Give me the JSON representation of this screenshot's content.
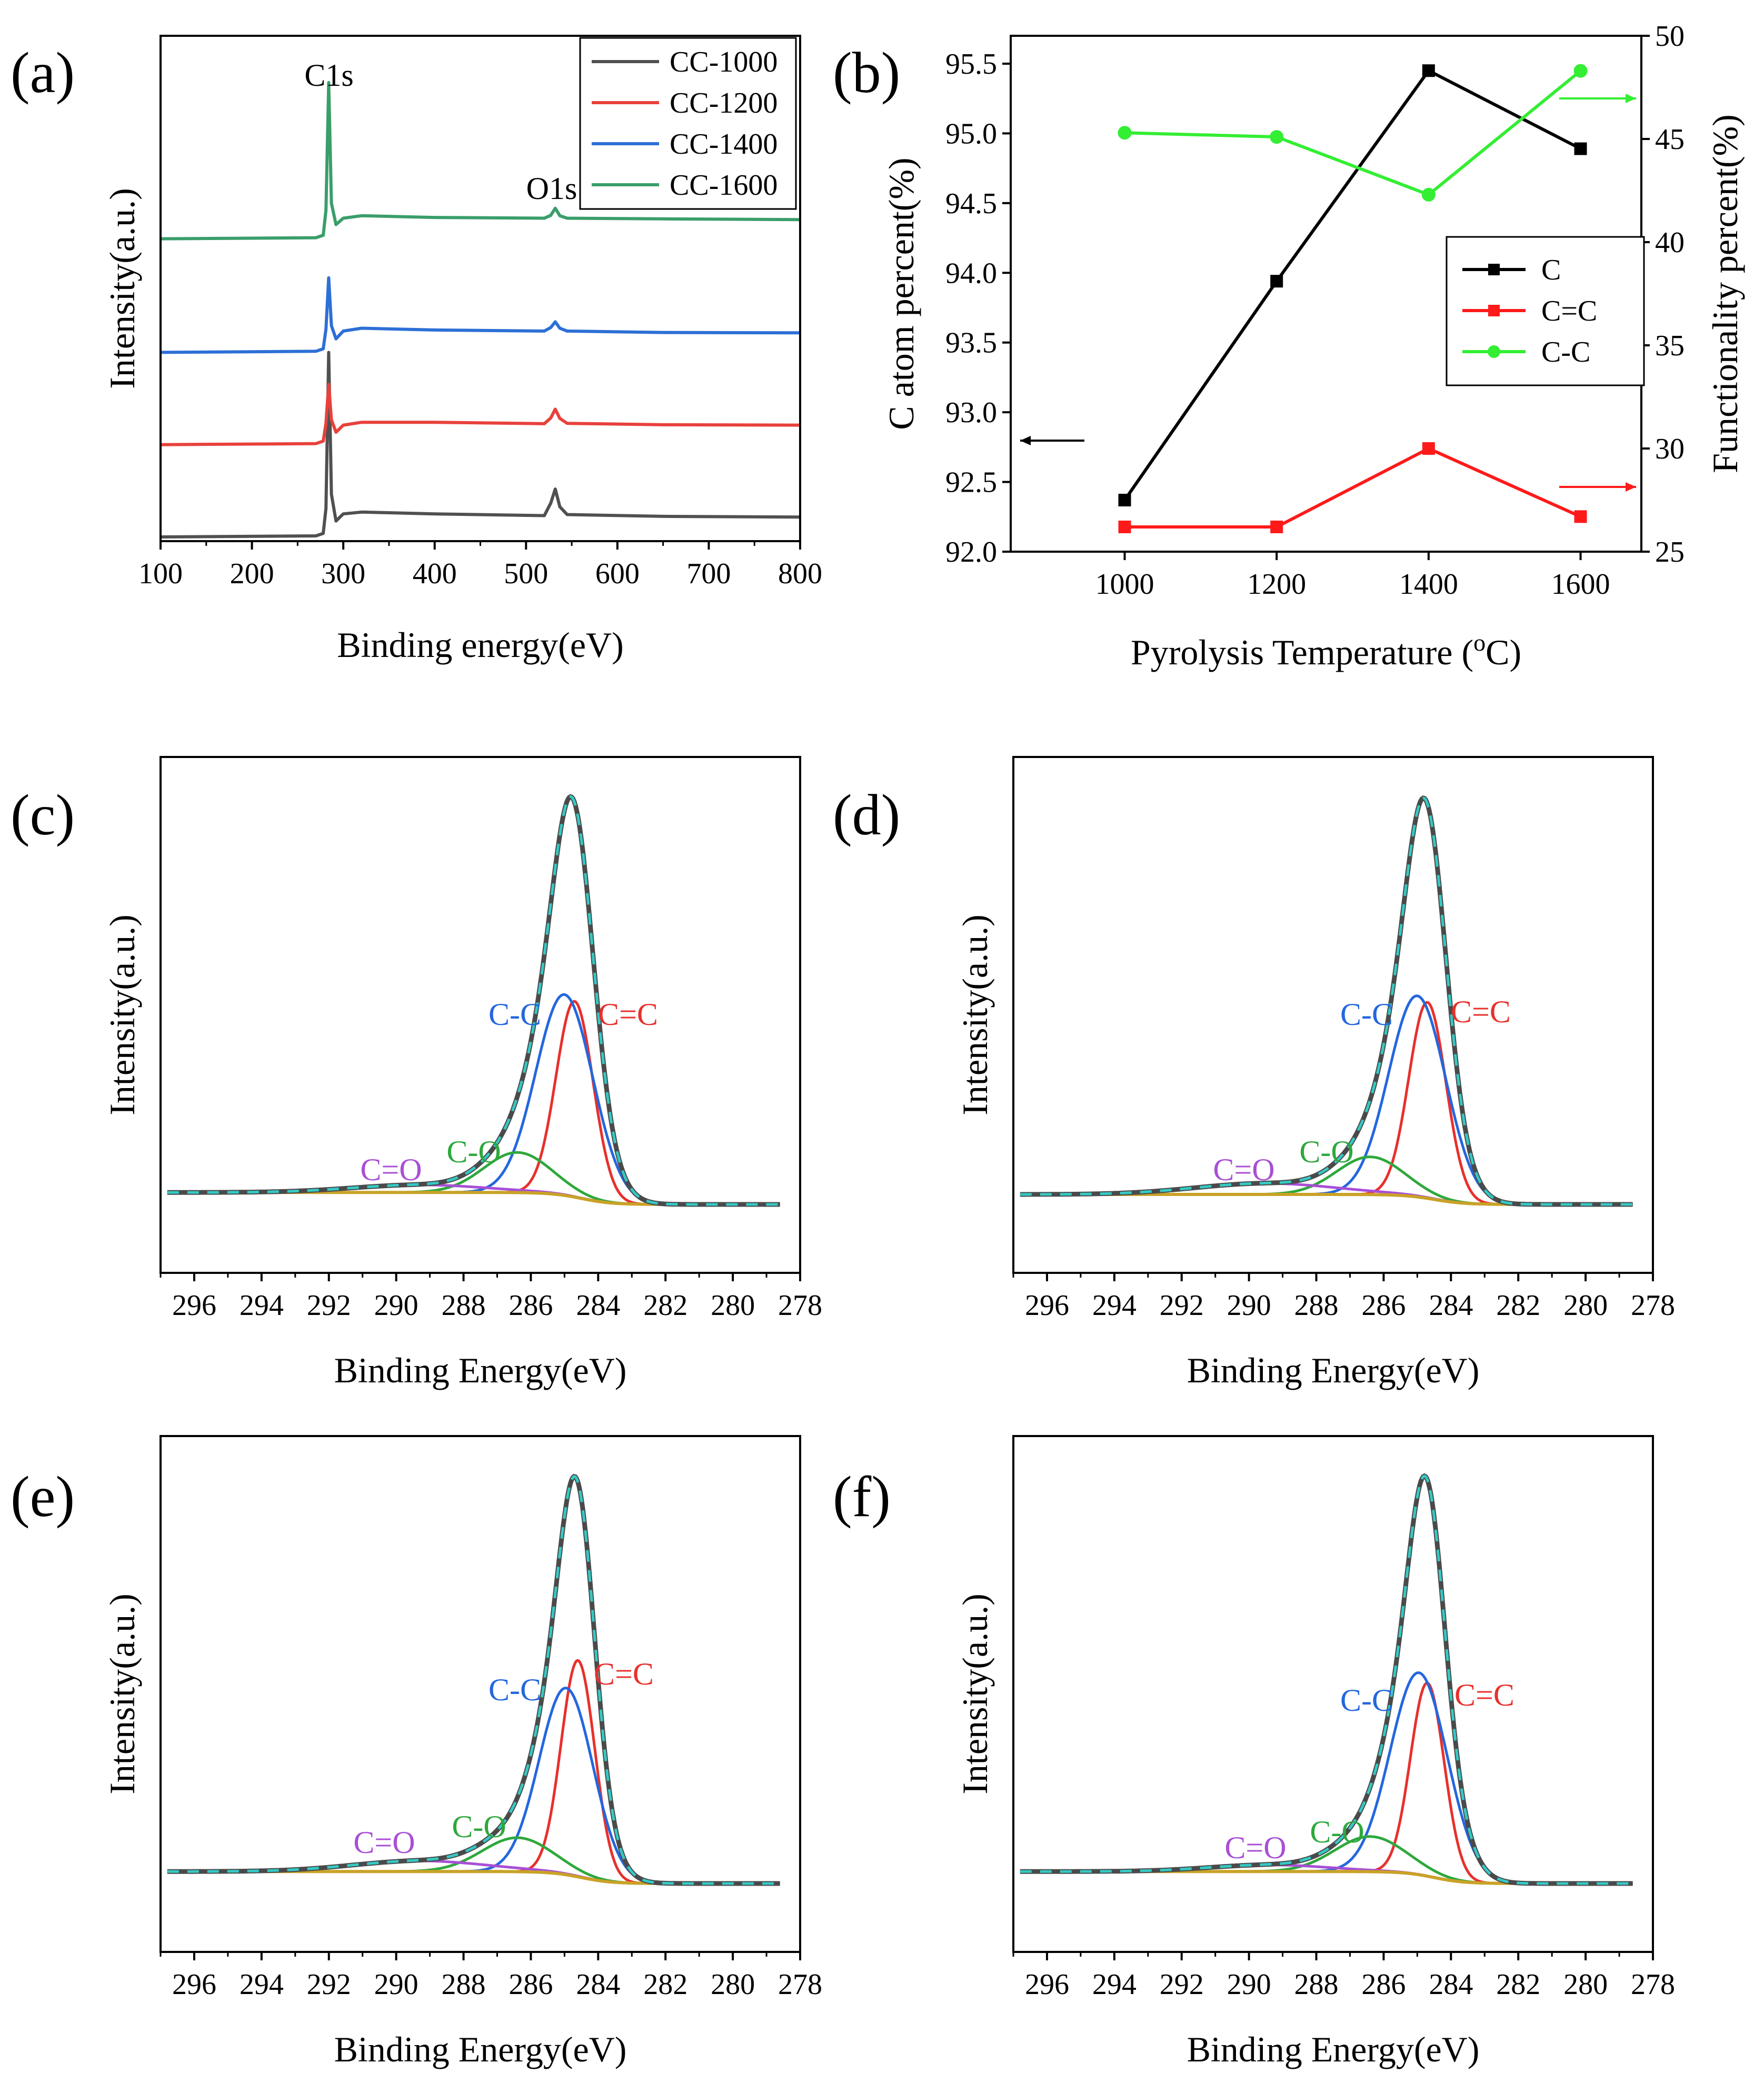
{
  "figure": {
    "panels": {
      "a": "(a)",
      "b": "(b)",
      "c": "(c)",
      "d": "(d)",
      "e": "(e)",
      "f": "(f)"
    }
  },
  "chart_data": [
    {
      "id": "a",
      "type": "line",
      "title": "",
      "xlabel": "Binding energy(eV)",
      "ylabel": "Intensity(a.u.)",
      "xlim": [
        100,
        800
      ],
      "xticks": [
        100,
        200,
        300,
        400,
        500,
        600,
        700,
        800
      ],
      "yticks": [],
      "legend_position": "top-right",
      "annotations": [
        {
          "text": "C1s",
          "x": 284
        },
        {
          "text": "O1s",
          "x": 532
        }
      ],
      "series": [
        {
          "name": "CC-1000",
          "color": "#505050",
          "offset": 0,
          "x": [
            100,
            270,
            278,
            281,
            284,
            287,
            292,
            300,
            320,
            400,
            520,
            527,
            532,
            537,
            545,
            650,
            800
          ],
          "y": [
            0,
            0.3,
            1.0,
            8.0,
            52.0,
            12.0,
            4.5,
            6.5,
            7.0,
            6.5,
            6.0,
            9.5,
            13.5,
            8.5,
            6.3,
            5.8,
            5.6
          ]
        },
        {
          "name": "CC-1200",
          "color": "#e8413c",
          "offset": 26,
          "x": [
            100,
            270,
            278,
            281,
            284,
            287,
            292,
            300,
            320,
            400,
            520,
            527,
            532,
            537,
            545,
            650,
            800
          ],
          "y": [
            0,
            0.3,
            1.0,
            6.0,
            17.0,
            7.0,
            3.5,
            5.5,
            6.3,
            6.3,
            5.9,
            7.5,
            10.0,
            7.4,
            6.0,
            5.6,
            5.5
          ]
        },
        {
          "name": "CC-1400",
          "color": "#2d6fd6",
          "offset": 52,
          "x": [
            100,
            270,
            278,
            281,
            284,
            287,
            292,
            300,
            320,
            400,
            520,
            527,
            532,
            537,
            545,
            650,
            800
          ],
          "y": [
            0,
            0.3,
            1.0,
            6.5,
            21.0,
            7.5,
            3.8,
            6.0,
            6.8,
            6.3,
            6.0,
            7.0,
            8.6,
            6.8,
            6.0,
            5.6,
            5.5
          ]
        },
        {
          "name": "CC-1600",
          "color": "#3a9e6a",
          "offset": 84,
          "x": [
            100,
            270,
            278,
            281,
            284,
            287,
            292,
            300,
            320,
            400,
            520,
            527,
            532,
            537,
            545,
            650,
            800
          ],
          "y": [
            0,
            0.3,
            1.0,
            8.0,
            44.0,
            10.0,
            4.0,
            5.8,
            6.5,
            6.0,
            5.8,
            6.6,
            8.6,
            6.5,
            5.8,
            5.6,
            5.4
          ]
        }
      ]
    },
    {
      "id": "b",
      "type": "line",
      "title": "",
      "xlabel": "Pyrolysis Temperature (",
      "xlabel_sup": "o",
      "xlabel_end": "C)",
      "ylabel": "C atom percent(%)",
      "ylabel_right": "Functionality percent(%)",
      "xlim": [
        850,
        1680
      ],
      "xticks": [
        1000,
        1200,
        1400,
        1600
      ],
      "ylim": [
        92.0,
        95.7
      ],
      "yticks": [
        "92.0",
        "92.5",
        "93.0",
        "93.5",
        "94.0",
        "94.5",
        "95.0",
        "95.5"
      ],
      "ylim_right": [
        25,
        50
      ],
      "yticks_right": [
        25,
        30,
        35,
        40,
        45,
        50
      ],
      "legend_position": "center-right",
      "x": [
        1000,
        1200,
        1400,
        1600
      ],
      "series": [
        {
          "name": "C",
          "axis": "left",
          "color": "#000000",
          "marker": "square",
          "values": [
            92.37,
            93.94,
            95.45,
            94.89
          ]
        },
        {
          "name": "C=C",
          "axis": "right",
          "color": "#ff1a1a",
          "marker": "square",
          "values": [
            26.2,
            26.2,
            30.0,
            26.7
          ]
        },
        {
          "name": "C-C",
          "axis": "right",
          "color": "#33ee33",
          "marker": "circle",
          "values": [
            45.3,
            45.1,
            42.3,
            48.3
          ]
        }
      ]
    },
    {
      "id": "c",
      "type": "line",
      "title": "",
      "xlabel": "Binding Energy(eV)",
      "ylabel": "Intensity(a.u.)",
      "xlim": [
        297,
        278
      ],
      "xticks": [
        296,
        294,
        292,
        290,
        288,
        286,
        284,
        282,
        280,
        278
      ],
      "components": [
        {
          "name": "C=C",
          "center": 284.7,
          "height": 39,
          "width": 0.55
        },
        {
          "name": "C-C",
          "center": 285.0,
          "height": 40,
          "width": 0.85
        },
        {
          "name": "C-O",
          "center": 286.4,
          "height": 8,
          "width": 1.0
        },
        {
          "name": "C=O",
          "center": 289.3,
          "height": 1.5,
          "width": 2.0
        }
      ],
      "envelope_peak": 100,
      "baseline": {
        "high_be": 3,
        "low_be": 0,
        "step_center": 284.5
      }
    },
    {
      "id": "d",
      "type": "line",
      "title": "",
      "xlabel": "Binding Energy(eV)",
      "ylabel": "Intensity(a.u.)",
      "xlim": [
        297,
        278
      ],
      "xticks": [
        296,
        294,
        292,
        290,
        288,
        286,
        284,
        282,
        280,
        278
      ],
      "components": [
        {
          "name": "C=C",
          "center": 284.7,
          "height": 39,
          "width": 0.55
        },
        {
          "name": "C-C",
          "center": 285.0,
          "height": 40,
          "width": 0.85
        },
        {
          "name": "C-O",
          "center": 286.4,
          "height": 7.5,
          "width": 1.0
        },
        {
          "name": "C=O",
          "center": 289.5,
          "height": 2.2,
          "width": 2.1
        }
      ],
      "envelope_peak": 100,
      "baseline": {
        "high_be": 2.5,
        "low_be": 0,
        "step_center": 284.5
      }
    },
    {
      "id": "e",
      "type": "line",
      "title": "",
      "xlabel": "Binding Energy(eV)",
      "ylabel": "Intensity(a.u.)",
      "xlim": [
        297,
        278
      ],
      "xticks": [
        296,
        294,
        292,
        290,
        288,
        286,
        284,
        282,
        280,
        278
      ],
      "components": [
        {
          "name": "C=C",
          "center": 284.6,
          "height": 51,
          "width": 0.5
        },
        {
          "name": "C-C",
          "center": 284.95,
          "height": 44,
          "width": 0.8
        },
        {
          "name": "C-O",
          "center": 286.4,
          "height": 8,
          "width": 1.05
        },
        {
          "name": "C=O",
          "center": 289.3,
          "height": 2.5,
          "width": 2.0
        }
      ],
      "envelope_peak": 100,
      "baseline": {
        "high_be": 3,
        "low_be": 0,
        "step_center": 284.5
      }
    },
    {
      "id": "f",
      "type": "line",
      "title": "",
      "xlabel": "Binding Energy(eV)",
      "ylabel": "Intensity(a.u.)",
      "xlim": [
        297,
        278
      ],
      "xticks": [
        296,
        294,
        292,
        290,
        288,
        286,
        284,
        282,
        280,
        278
      ],
      "components": [
        {
          "name": "C=C",
          "center": 284.7,
          "height": 44,
          "width": 0.5
        },
        {
          "name": "C-C",
          "center": 284.95,
          "height": 46,
          "width": 0.85
        },
        {
          "name": "C-O",
          "center": 286.4,
          "height": 8,
          "width": 1.05
        },
        {
          "name": "C=O",
          "center": 289.4,
          "height": 1.5,
          "width": 1.8
        }
      ],
      "envelope_peak": 100,
      "baseline": {
        "high_be": 3,
        "low_be": 0,
        "step_center": 284.5
      }
    }
  ]
}
